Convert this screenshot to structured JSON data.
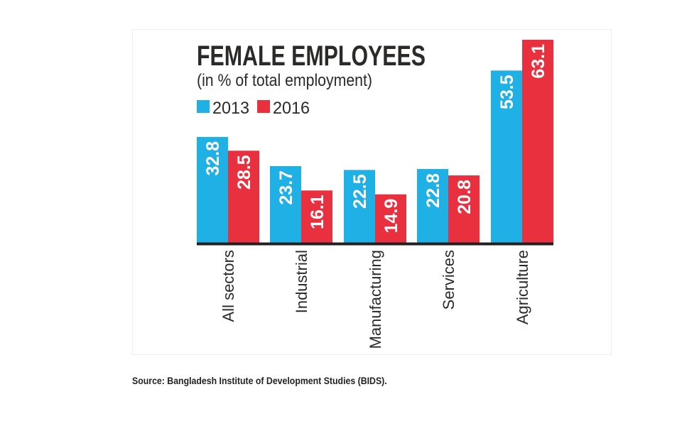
{
  "chart_data": {
    "type": "bar",
    "title": "FEMALE EMPLOYEES",
    "subtitle": "(in % of total employment)",
    "xlabel": "",
    "ylabel": "",
    "ylim": [
      0,
      63.1
    ],
    "grid": false,
    "legend_placement": "top-left",
    "categories": [
      "All sectors",
      "Industrial",
      "Manufacturing",
      "Services",
      "Agriculture"
    ],
    "series": [
      {
        "name": "2013",
        "color": "#1fb0e6",
        "values": [
          32.8,
          23.7,
          22.5,
          22.8,
          53.5
        ],
        "labels": [
          "32.8",
          "23.7",
          "22.5",
          "22.8",
          "53.5"
        ]
      },
      {
        "name": "2016",
        "color": "#e8303f",
        "values": [
          28.5,
          16.1,
          14.9,
          20.8,
          63.1
        ],
        "labels": [
          "28.5",
          "16.1",
          "14.9",
          "20.8",
          "63.1"
        ]
      }
    ]
  },
  "source": "Source: Bangladesh Institute of Development Studies (BIDS)."
}
